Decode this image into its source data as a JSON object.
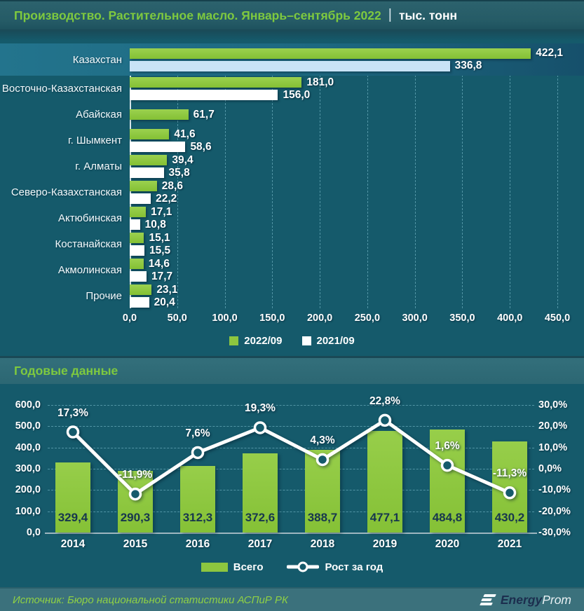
{
  "header": {
    "title": "Производство. Растительное масло. Январь–сентябрь 2022",
    "separator": "|",
    "unit": "тыс. тонн"
  },
  "colors": {
    "background": "#155a6b",
    "green": "#8dc63f",
    "white_bar": "#ffffff",
    "lightblue_bar": "#c9e3f6",
    "title_green": "#7ec93f",
    "dark_value_text": "#17364e",
    "line": "#ffffff"
  },
  "chart_data": [
    {
      "type": "bar",
      "orientation": "horizontal",
      "title": "Производство. Растительное масло. Январь–сентябрь 2022, тыс. тонн",
      "categories": [
        "Казахстан",
        "Восточно-Казахстанская",
        "Абайская",
        "г. Шымкент",
        "г. Алматы",
        "Северо-Казахстанская",
        "Актюбинская",
        "Костанайская",
        "Акмолинская",
        "Прочие"
      ],
      "highlight_category": "Казахстан",
      "highlight_index": 0,
      "series": [
        {
          "name": "2022/09",
          "color": "#8dc63f",
          "values": [
            422.1,
            181.0,
            61.7,
            41.6,
            39.4,
            28.6,
            17.1,
            15.1,
            14.6,
            23.1
          ],
          "labels": [
            "422,1",
            "181,0",
            "61,7",
            "41,6",
            "39,4",
            "28,6",
            "17,1",
            "15,1",
            "14,6",
            "23,1"
          ]
        },
        {
          "name": "2021/09",
          "color": "#ffffff",
          "highlight_color": "#c9e3f6",
          "values": [
            336.8,
            156.0,
            null,
            58.6,
            35.8,
            22.2,
            10.8,
            15.5,
            17.7,
            20.4
          ],
          "labels": [
            "336,8",
            "156,0",
            null,
            "58,6",
            "35,8",
            "22,2",
            "10,8",
            "15,5",
            "17,7",
            "20,4"
          ]
        }
      ],
      "xlim": [
        0,
        450
      ],
      "x_ticks": [
        "0,0",
        "50,0",
        "100,0",
        "150,0",
        "200,0",
        "250,0",
        "300,0",
        "350,0",
        "400,0",
        "450,0"
      ],
      "grid": "vertical-dashed",
      "legend_position": "bottom",
      "legend": [
        {
          "label": "2022/09",
          "color": "#8dc63f"
        },
        {
          "label": "2021/09",
          "color": "#ffffff"
        }
      ]
    },
    {
      "type": "bar+line",
      "section_title": "Годовые данные",
      "categories": [
        "2014",
        "2015",
        "2016",
        "2017",
        "2018",
        "2019",
        "2020",
        "2021"
      ],
      "series": [
        {
          "name": "Всего",
          "type": "bar",
          "axis": "left",
          "color": "#8dc63f",
          "values": [
            329.4,
            290.3,
            312.3,
            372.6,
            388.7,
            477.1,
            484.8,
            430.2
          ],
          "labels": [
            "329,4",
            "290,3",
            "312,3",
            "372,6",
            "388,7",
            "477,1",
            "484,8",
            "430,2"
          ]
        },
        {
          "name": "Рост за год",
          "type": "line",
          "axis": "right",
          "color": "#ffffff",
          "values": [
            17.3,
            -11.9,
            7.6,
            19.3,
            4.3,
            22.8,
            1.6,
            -11.3
          ],
          "labels": [
            "17,3%",
            "-11,9%",
            "7,6%",
            "19,3%",
            "4,3%",
            "22,8%",
            "1,6%",
            "-11,3%"
          ]
        }
      ],
      "ylim_left": [
        0,
        600
      ],
      "y_left_ticks": [
        "0,0",
        "100,0",
        "200,0",
        "300,0",
        "400,0",
        "500,0",
        "600,0"
      ],
      "ylim_right": [
        -30,
        30
      ],
      "y_right_ticks": [
        "-30,0%",
        "-20,0%",
        "-10,0%",
        "0,0%",
        "10,0%",
        "20,0%",
        "30,0%"
      ],
      "grid": "horizontal-dashed",
      "legend_position": "bottom",
      "legend": [
        {
          "label": "Всего",
          "swatch": "bar",
          "color": "#8dc63f"
        },
        {
          "label": "Рост за год",
          "swatch": "line",
          "color": "#ffffff"
        }
      ]
    }
  ],
  "footer": {
    "source": "Источник: Бюро национальной статистики АСПиР РК",
    "logo": {
      "icon": "energyprom-icon",
      "bold": "Energy",
      "light": "Prom"
    }
  }
}
